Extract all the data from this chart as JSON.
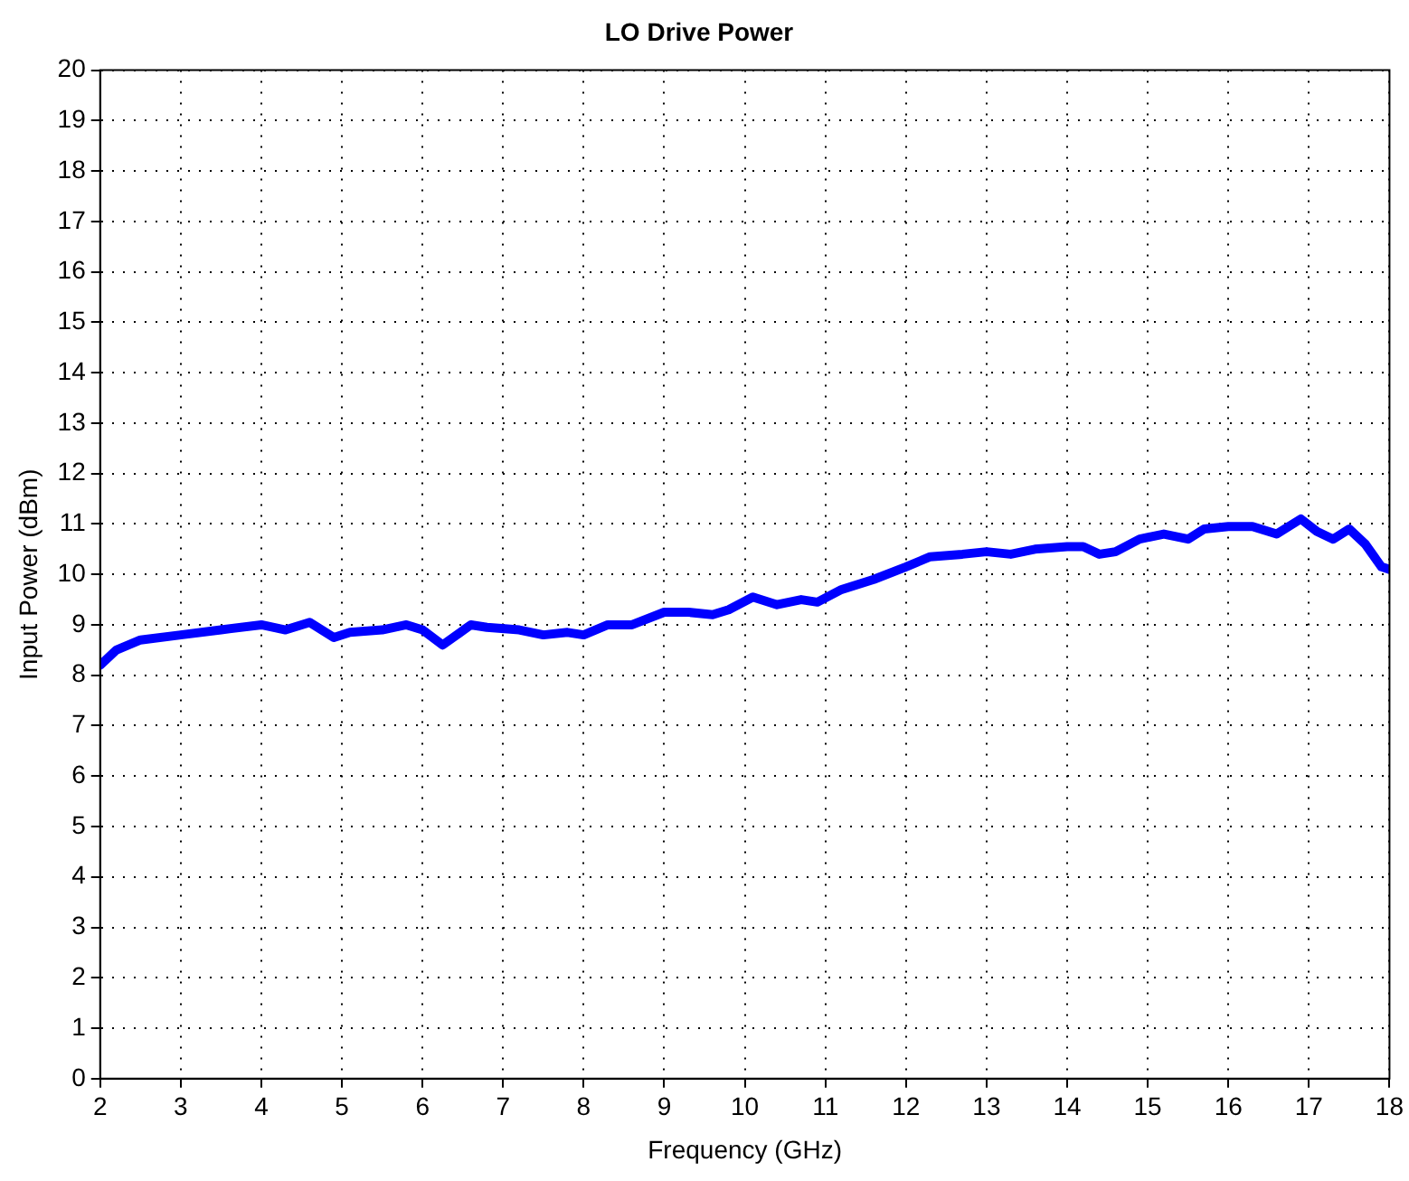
{
  "chart_data": {
    "type": "line",
    "title": "LO Drive Power",
    "xlabel": "Frequency (GHz)",
    "ylabel": "Input Power (dBm)",
    "x": [
      2.0,
      2.2,
      2.5,
      3,
      3.5,
      4,
      4.3,
      4.6,
      4.9,
      5.1,
      5.5,
      5.8,
      6.0,
      6.25,
      6.6,
      6.8,
      7.2,
      7.5,
      7.8,
      8.0,
      8.3,
      8.6,
      9.0,
      9.3,
      9.6,
      9.8,
      10.1,
      10.4,
      10.7,
      10.9,
      11.2,
      11.6,
      12.0,
      12.3,
      12.7,
      13.0,
      13.3,
      13.6,
      14.0,
      14.2,
      14.4,
      14.6,
      14.9,
      15.2,
      15.5,
      15.7,
      16.0,
      16.3,
      16.6,
      16.9,
      17.1,
      17.3,
      17.5,
      17.7,
      17.9,
      18.0
    ],
    "series": [
      {
        "color": "#0000ff",
        "values": [
          8.2,
          8.5,
          8.7,
          8.8,
          8.9,
          9.0,
          8.9,
          9.05,
          8.75,
          8.85,
          8.9,
          9.0,
          8.9,
          8.6,
          9.0,
          8.95,
          8.9,
          8.8,
          8.85,
          8.8,
          9.0,
          9.0,
          9.25,
          9.25,
          9.2,
          9.3,
          9.55,
          9.4,
          9.5,
          9.45,
          9.7,
          9.9,
          10.15,
          10.35,
          10.4,
          10.45,
          10.4,
          10.5,
          10.55,
          10.55,
          10.4,
          10.45,
          10.7,
          10.8,
          10.7,
          10.9,
          10.95,
          10.95,
          10.8,
          11.1,
          10.85,
          10.7,
          10.9,
          10.6,
          10.15,
          10.1
        ]
      }
    ],
    "xlim": [
      2,
      18
    ],
    "xticks": [
      2,
      3,
      4,
      5,
      6,
      7,
      8,
      9,
      10,
      11,
      12,
      13,
      14,
      15,
      16,
      17,
      18
    ],
    "ylim": [
      0,
      20
    ],
    "yticks": [
      0,
      1,
      2,
      3,
      4,
      5,
      6,
      7,
      8,
      9,
      10,
      11,
      12,
      13,
      14,
      15,
      16,
      17,
      18,
      19,
      20
    ],
    "grid": true,
    "legend": false,
    "marker": "none",
    "line_style": "solid"
  }
}
